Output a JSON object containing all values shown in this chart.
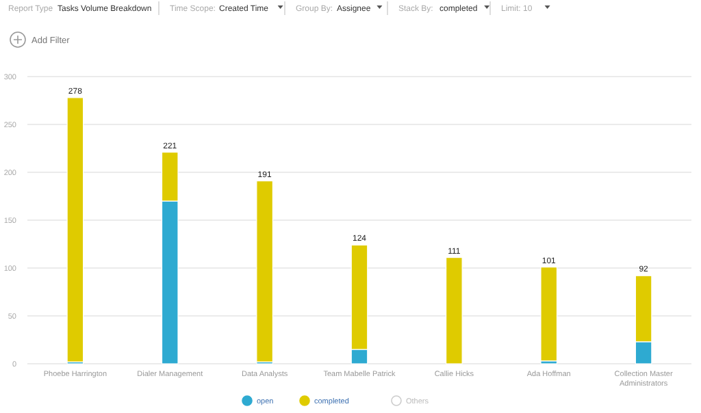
{
  "chart_data": {
    "type": "bar",
    "stacked": true,
    "categories": [
      "Phoebe Harrington",
      "Dialer Management",
      "Data Analysts",
      "Team Mabelle Patrick",
      "Callie Hicks",
      "Ada Hoffman",
      "Collection Master Administrators"
    ],
    "series": [
      {
        "name": "open",
        "color": "#2eaad1",
        "values": [
          2,
          170,
          2,
          15,
          0,
          3,
          23
        ]
      },
      {
        "name": "completed",
        "color": "#dfcb00",
        "values": [
          276,
          51,
          189,
          109,
          111,
          98,
          69
        ]
      },
      {
        "name": "Others",
        "color": "#cccccc",
        "values": [
          null,
          null,
          null,
          null,
          null,
          null,
          null
        ]
      }
    ],
    "totals": [
      "278",
      "221",
      "191",
      "124",
      "111",
      "101",
      "92"
    ],
    "ylim": [
      0,
      300
    ],
    "yticks": [
      0,
      50,
      100,
      150,
      200,
      250,
      300
    ],
    "grid": "y",
    "legend": "bottom",
    "annotations": [
      "Report Type",
      "Tasks Volume Breakdown",
      "Time Scope:",
      "Created Time",
      "Group By:",
      "Assignee",
      "Stack By:",
      "completed",
      "Limit: 10",
      "Add Filter"
    ]
  }
}
